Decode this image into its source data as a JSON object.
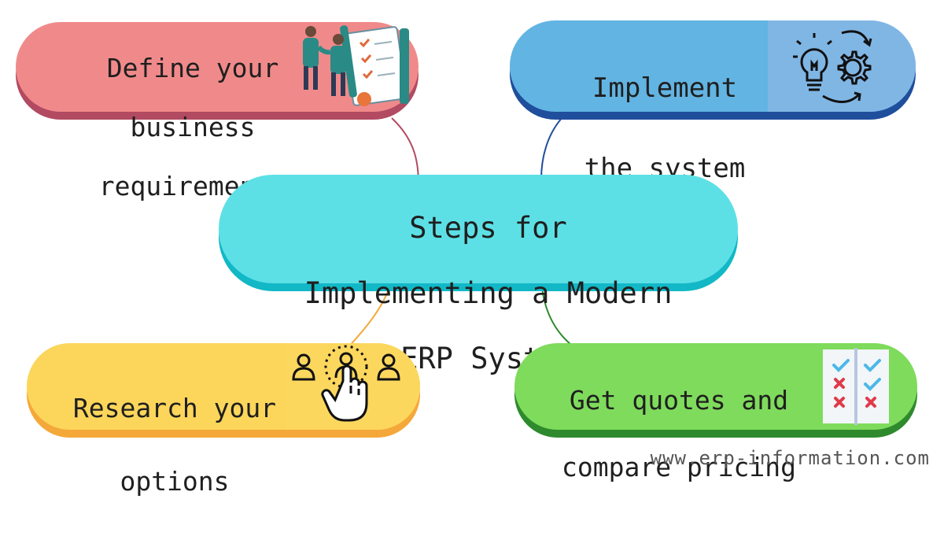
{
  "diagram": {
    "center": {
      "lines": [
        "Steps for",
        "Implementing a Modern",
        "ERP System"
      ]
    },
    "steps": [
      {
        "id": "define",
        "lines": [
          "Define your",
          "business",
          "requirements"
        ],
        "icon": "handshake-checklist-icon",
        "color": "#f08a8a",
        "shadow": "#b24a62"
      },
      {
        "id": "implement",
        "lines": [
          "Implement",
          "the system"
        ],
        "icon": "lightbulb-gear-icon",
        "color": "#62b4e2",
        "shadow": "#1f4e9c"
      },
      {
        "id": "research",
        "lines": [
          "Research your",
          "options"
        ],
        "icon": "user-select-icon",
        "color": "#fbd65a",
        "shadow": "#f5a83a"
      },
      {
        "id": "quotes",
        "lines": [
          "Get quotes and",
          "compare pricing"
        ],
        "icon": "checklist-icon",
        "color": "#7fdb5c",
        "shadow": "#2f8a2e"
      }
    ],
    "center_color": "#5ce0e6",
    "center_shadow": "#12b8c6"
  },
  "footer": {
    "url": "www.erp-information.com"
  }
}
